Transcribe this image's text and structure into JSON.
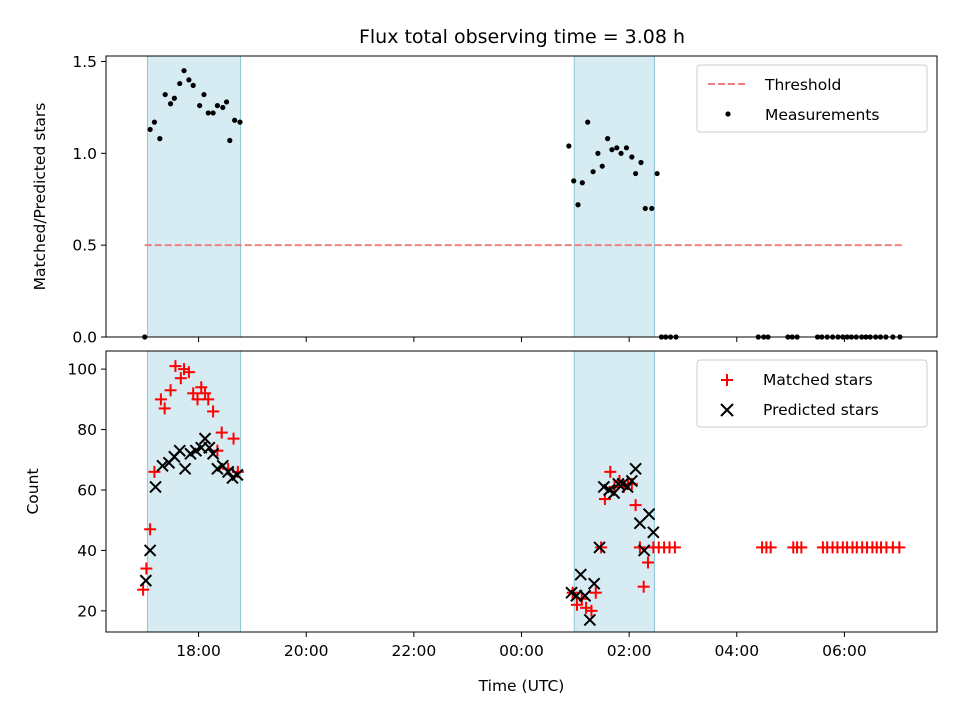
{
  "chart_data": [
    {
      "type": "scatter",
      "title": "Flux total observing time = 3.08 h",
      "xlabel": "",
      "ylabel": "Matched/Predicted stars",
      "xlim": [
        16.28,
        31.72
      ],
      "ylim": [
        0,
        1.53
      ],
      "yticks": [
        0,
        0.5,
        1.0,
        1.5
      ],
      "ytick_labels": [
        "0.0",
        "0.5",
        "1.0",
        "1.5"
      ],
      "xticks": [
        18,
        20,
        22,
        24,
        26,
        28,
        30
      ],
      "grid": false,
      "legend_position": "top-right",
      "shaded_intervals": [
        [
          17.05,
          18.78
        ],
        [
          24.98,
          26.47
        ]
      ],
      "series": [
        {
          "name": "Threshold",
          "kind": "line",
          "style": "dashed",
          "color": "#f08080",
          "x": [
            17.0,
            31.12
          ],
          "y": [
            0.5,
            0.5
          ]
        },
        {
          "name": "Measurements",
          "kind": "scatter",
          "marker": "dot",
          "color": "#000000",
          "x": [
            17.0,
            17.1,
            17.18,
            17.28,
            17.38,
            17.48,
            17.55,
            17.65,
            17.73,
            17.82,
            17.9,
            18.02,
            18.1,
            18.18,
            18.27,
            18.35,
            18.45,
            18.52,
            18.58,
            18.67,
            18.77,
            24.88,
            24.97,
            25.05,
            25.13,
            25.23,
            25.33,
            25.42,
            25.5,
            25.6,
            25.68,
            25.77,
            25.85,
            25.95,
            26.05,
            26.12,
            26.22,
            26.3,
            26.42,
            26.52,
            26.6,
            26.68,
            26.77,
            26.87,
            28.4,
            28.5,
            28.58,
            28.95,
            29.03,
            29.12,
            29.5,
            29.58,
            29.68,
            29.78,
            29.88,
            29.97,
            30.05,
            30.13,
            30.22,
            30.32,
            30.4,
            30.48,
            30.58,
            30.67,
            30.77,
            30.9,
            31.03
          ],
          "y": [
            0.0,
            1.13,
            1.17,
            1.08,
            1.32,
            1.27,
            1.3,
            1.38,
            1.45,
            1.4,
            1.37,
            1.26,
            1.32,
            1.22,
            1.22,
            1.26,
            1.25,
            1.28,
            1.07,
            1.18,
            1.17,
            1.04,
            0.85,
            0.72,
            0.84,
            1.17,
            0.9,
            1.0,
            0.93,
            1.08,
            1.02,
            1.03,
            1.0,
            1.03,
            0.98,
            0.89,
            0.95,
            0.7,
            0.7,
            0.89,
            0.0,
            0.0,
            0.0,
            0.0,
            0.0,
            0.0,
            0.0,
            0.0,
            0.0,
            0.0,
            0.0,
            0.0,
            0.0,
            0.0,
            0.0,
            0.0,
            0.0,
            0.0,
            0.0,
            0.0,
            0.0,
            0.0,
            0.0,
            0.0,
            0.0,
            0.0,
            0.0
          ]
        }
      ]
    },
    {
      "type": "scatter",
      "title": "",
      "xlabel": "Time (UTC)",
      "ylabel": "Count",
      "xlim": [
        16.28,
        31.72
      ],
      "ylim": [
        13,
        106
      ],
      "yticks": [
        20,
        40,
        60,
        80,
        100
      ],
      "ytick_labels": [
        "20",
        "40",
        "60",
        "80",
        "100"
      ],
      "xticks": [
        18,
        20,
        22,
        24,
        26,
        28,
        30
      ],
      "xtick_labels": [
        "18:00",
        "20:00",
        "22:00",
        "00:00",
        "02:00",
        "04:00",
        "06:00"
      ],
      "grid": false,
      "legend_position": "top-right",
      "shaded_intervals": [
        [
          17.05,
          18.78
        ],
        [
          24.98,
          26.47
        ]
      ],
      "series": [
        {
          "name": "Matched stars",
          "kind": "scatter",
          "marker": "plus",
          "color": "#ff0000",
          "x": [
            16.97,
            17.03,
            17.1,
            17.18,
            17.3,
            17.37,
            17.48,
            17.57,
            17.67,
            17.73,
            17.82,
            17.9,
            17.98,
            18.05,
            18.12,
            18.18,
            18.27,
            18.35,
            18.43,
            18.55,
            18.65,
            18.73,
            24.95,
            25.03,
            25.12,
            25.2,
            25.3,
            25.38,
            25.48,
            25.55,
            25.65,
            25.73,
            25.82,
            25.9,
            25.98,
            26.05,
            26.12,
            26.2,
            26.27,
            26.35,
            26.45,
            26.55,
            26.65,
            26.75,
            26.85,
            28.47,
            28.55,
            28.63,
            29.05,
            29.12,
            29.2,
            29.6,
            29.68,
            29.78,
            29.87,
            29.97,
            30.05,
            30.15,
            30.23,
            30.33,
            30.42,
            30.52,
            30.6,
            30.68,
            30.78,
            30.9,
            31.02
          ],
          "y": [
            27,
            34,
            47,
            66,
            90,
            87,
            93,
            101,
            97,
            100,
            99,
            92,
            90,
            94,
            92,
            90,
            86,
            73,
            79,
            67,
            77,
            66,
            26,
            22,
            24,
            21,
            20,
            26,
            41,
            57,
            66,
            61,
            63,
            61,
            62,
            62,
            55,
            41,
            28,
            36,
            41,
            41,
            41,
            41,
            41,
            41,
            41,
            41,
            41,
            41,
            41,
            41,
            41,
            41,
            41,
            41,
            41,
            41,
            41,
            41,
            41,
            41,
            41,
            41,
            41,
            41,
            41
          ]
        },
        {
          "name": "Predicted stars",
          "kind": "scatter",
          "marker": "x",
          "color": "#000000",
          "x": [
            17.02,
            17.1,
            17.2,
            17.33,
            17.45,
            17.55,
            17.65,
            17.75,
            17.85,
            17.95,
            18.05,
            18.12,
            18.2,
            18.27,
            18.35,
            18.45,
            18.55,
            18.63,
            18.72,
            24.93,
            25.02,
            25.1,
            25.18,
            25.27,
            25.35,
            25.45,
            25.53,
            25.63,
            25.72,
            25.8,
            25.88,
            25.97,
            26.05,
            26.12,
            26.2,
            26.28,
            26.37,
            26.45
          ],
          "y": [
            30,
            40,
            61,
            68,
            69,
            71,
            73,
            67,
            72,
            73,
            74,
            77,
            74,
            72,
            67,
            68,
            66,
            64,
            65,
            26,
            25,
            32,
            25,
            17,
            29,
            41,
            61,
            60,
            59,
            62,
            62,
            61,
            63,
            67,
            49,
            40,
            52,
            46
          ]
        }
      ]
    }
  ]
}
